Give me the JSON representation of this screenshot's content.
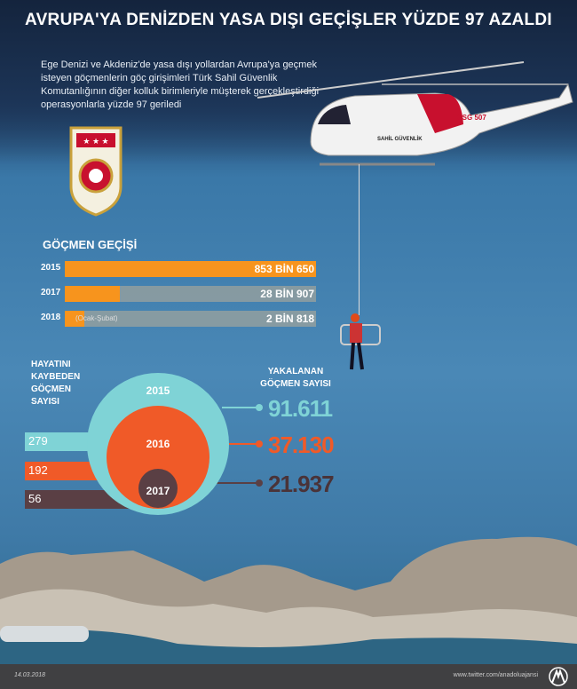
{
  "header": {
    "title": "AVRUPA'YA DENİZDEN YASA DIŞI GEÇİŞLER YÜZDE 97 AZALDI",
    "intro": "Ege Denizi ve Akdeniz'de yasa dışı yollardan Avrupa'ya geçmek isteyen göçmenlerin göç girişimleri Türk Sahil Güvenlik Komutanlığının diğer kolluk birimleriyle müşterek gerçekleştirdiği operasyonlarla yüzde 97 geriledi"
  },
  "helicopter": {
    "tail_code": "TCSG 507",
    "side_text": "SAHİL GÜVENLİK"
  },
  "colors": {
    "orange": "#f7941d",
    "teal": "#7fd3d6",
    "red_orange": "#f05a28",
    "dark": "#5a3f44",
    "footer": "#404042"
  },
  "chart_data": [
    {
      "type": "bar",
      "title": "GÖÇMEN GEÇİŞİ",
      "orientation": "horizontal",
      "categories": [
        "2015",
        "2017",
        "2018"
      ],
      "values": [
        853650,
        28907,
        2818
      ],
      "value_labels": [
        "853 BİN 650",
        "28 BİN 907",
        "2 BİN 818"
      ],
      "notes": [
        "",
        "",
        "(Ocak-Şubat)"
      ]
    },
    {
      "type": "bubble",
      "categories": [
        "2015",
        "2016",
        "2017"
      ],
      "left_title": "HAYATINI KAYBEDEN GÖÇMEN SAYISI",
      "deaths": [
        279,
        192,
        56
      ],
      "right_title": "YAKALANAN GÖÇMEN SAYISI",
      "caught": [
        91611,
        37130,
        21937
      ],
      "caught_labels": [
        "91.611",
        "37.130",
        "21.937"
      ]
    }
  ],
  "footer": {
    "date": "14.03.2018",
    "site": "www.twitter.com/anadoluajansi",
    "logo_text": "AA"
  }
}
